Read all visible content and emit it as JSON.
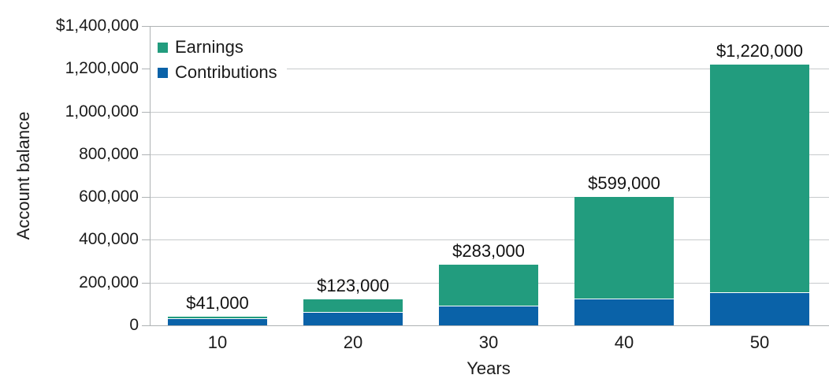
{
  "chart_data": {
    "type": "bar",
    "stacked": true,
    "xlabel": "Years",
    "ylabel": "Account balance",
    "categories": [
      "10",
      "20",
      "30",
      "40",
      "50"
    ],
    "series": [
      {
        "name": "Contributions",
        "color": "#0a62a8",
        "values": [
          30000,
          60000,
          90000,
          120000,
          150000
        ]
      },
      {
        "name": "Earnings",
        "color": "#229c7e",
        "values": [
          11000,
          63000,
          193000,
          479000,
          1070000
        ]
      }
    ],
    "totals": [
      41000,
      123000,
      283000,
      599000,
      1220000
    ],
    "bar_labels": [
      "$41,000",
      "$123,000",
      "$283,000",
      "$599,000",
      "$1,220,000"
    ],
    "ylim": [
      0,
      1400000
    ],
    "ytick_step": 200000,
    "ytick_labels": [
      "$1,400,000",
      "1,200,000",
      "1,000,000",
      "800,000",
      "600,000",
      "400,000",
      "200,000",
      "0"
    ],
    "legend": {
      "position": "top-left",
      "entries": [
        {
          "label": "Earnings",
          "color": "#229c7e"
        },
        {
          "label": "Contributions",
          "color": "#0a62a8"
        }
      ]
    },
    "grid": true,
    "gridline_color": "#c7cacc",
    "axis_color": "#aeb2b4",
    "text_color": "#1b1b1b",
    "separator_color": "#ffffff"
  }
}
